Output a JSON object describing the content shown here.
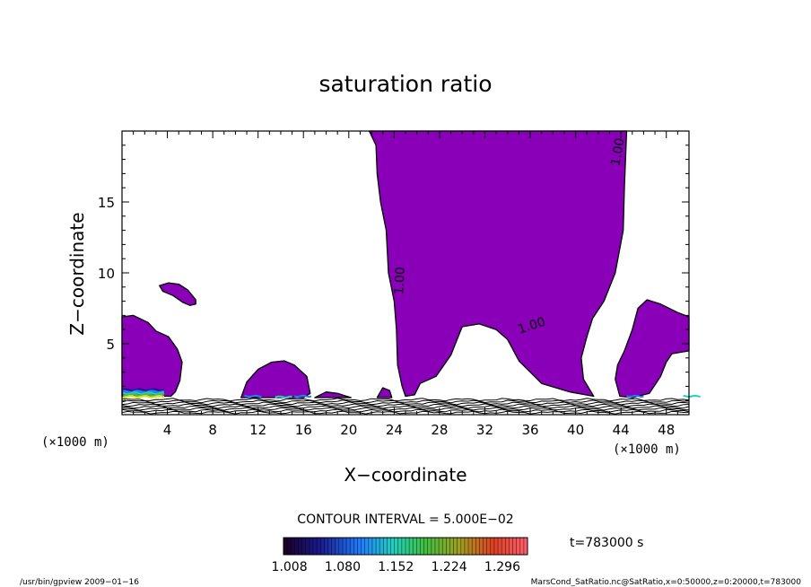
{
  "chart_data": {
    "type": "contour",
    "title": "saturation ratio",
    "xlabel": "X−coordinate",
    "ylabel": "Z−coordinate",
    "x_unit_left": "(×1000 m)",
    "x_unit_right": "(×1000 m)",
    "xlim": [
      0,
      50
    ],
    "ylim": [
      0,
      20
    ],
    "x_ticks": [
      4,
      8,
      12,
      16,
      20,
      24,
      28,
      32,
      36,
      40,
      44,
      48
    ],
    "y_ticks": [
      5,
      10,
      15
    ],
    "contour_label": "1.00",
    "contour_interval_text": "CONTOUR INTERVAL = 5.000E−02",
    "time_text": "t=783000 s",
    "colorbar_ticks": [
      "1.008",
      "1.080",
      "1.152",
      "1.224",
      "1.296"
    ],
    "colorbar_range": [
      1.0,
      1.33
    ],
    "fill_color": "#8a00b8",
    "footer_left": "/usr/bin/gpview   2009−01−16",
    "footer_right": "MarsCond_SatRatio.nc@SatRatio,x=0:50000,z=0:20000,t=783000",
    "regions": [
      {
        "name": "central-plume",
        "points": [
          [
            21.8,
            20
          ],
          [
            26.5,
            20
          ],
          [
            44.5,
            20
          ],
          [
            44.3,
            16
          ],
          [
            44.2,
            13
          ],
          [
            43.5,
            10
          ],
          [
            42.5,
            8
          ],
          [
            41.5,
            6.8
          ],
          [
            41,
            5.5
          ],
          [
            40.5,
            4
          ],
          [
            40.7,
            2.5
          ],
          [
            41.6,
            1.3
          ],
          [
            39.5,
            1.6
          ],
          [
            37,
            2.2
          ],
          [
            35,
            3.8
          ],
          [
            34,
            5.3
          ],
          [
            33,
            6
          ],
          [
            31.5,
            6.4
          ],
          [
            30,
            6.2
          ],
          [
            29,
            4.2
          ],
          [
            27.7,
            2.7
          ],
          [
            26.3,
            2.2
          ],
          [
            25.8,
            1.4
          ],
          [
            25,
            1.3
          ],
          [
            24.7,
            2
          ],
          [
            24.3,
            3.5
          ],
          [
            24.2,
            6
          ],
          [
            24,
            8
          ],
          [
            23.5,
            10
          ],
          [
            23.3,
            13
          ],
          [
            22.8,
            15
          ],
          [
            22.5,
            17
          ],
          [
            22.4,
            19
          ]
        ]
      },
      {
        "name": "right-plume",
        "points": [
          [
            50,
            6.9
          ],
          [
            49,
            7.2
          ],
          [
            47.5,
            7.8
          ],
          [
            46.3,
            8.1
          ],
          [
            45.5,
            7.5
          ],
          [
            45,
            6
          ],
          [
            44.3,
            4.5
          ],
          [
            43.7,
            3.5
          ],
          [
            43.5,
            2.5
          ],
          [
            43.9,
            1.3
          ],
          [
            45,
            1.2
          ],
          [
            46.5,
            1.5
          ],
          [
            47.5,
            2.7
          ],
          [
            48,
            3.7
          ],
          [
            48.5,
            4.3
          ],
          [
            50,
            4.5
          ]
        ]
      },
      {
        "name": "left-plume",
        "points": [
          [
            0,
            6.9
          ],
          [
            1,
            7.0
          ],
          [
            2.3,
            6.5
          ],
          [
            3,
            5.9
          ],
          [
            4.1,
            5.5
          ],
          [
            4.9,
            4.6
          ],
          [
            5.3,
            3.7
          ],
          [
            5.1,
            2.4
          ],
          [
            4.7,
            1.6
          ],
          [
            4.3,
            1.3
          ],
          [
            0,
            1.3
          ]
        ]
      },
      {
        "name": "small-blob",
        "points": [
          [
            3.3,
            9.1
          ],
          [
            4.1,
            9.3
          ],
          [
            5,
            9.2
          ],
          [
            5.8,
            8.8
          ],
          [
            6.5,
            8.1
          ],
          [
            6.5,
            7.8
          ],
          [
            6,
            7.7
          ],
          [
            5.4,
            7.9
          ],
          [
            4.5,
            8.4
          ],
          [
            3.6,
            8.7
          ]
        ]
      },
      {
        "name": "mid-mound",
        "points": [
          [
            10.5,
            1.2
          ],
          [
            11,
            2.3
          ],
          [
            12,
            3.2
          ],
          [
            13.2,
            3.7
          ],
          [
            14.3,
            3.8
          ],
          [
            15.2,
            3.5
          ],
          [
            16.3,
            2.7
          ],
          [
            16.6,
            1.5
          ],
          [
            16,
            1.2
          ]
        ]
      },
      {
        "name": "surface-bump-1",
        "points": [
          [
            17,
            1.2
          ],
          [
            18,
            1.6
          ],
          [
            19,
            1.5
          ],
          [
            20.2,
            1.2
          ]
        ]
      },
      {
        "name": "surface-bump-2",
        "points": [
          [
            22.5,
            1.2
          ],
          [
            23,
            1.9
          ],
          [
            23.6,
            1.7
          ],
          [
            23.8,
            1.2
          ]
        ]
      }
    ]
  }
}
